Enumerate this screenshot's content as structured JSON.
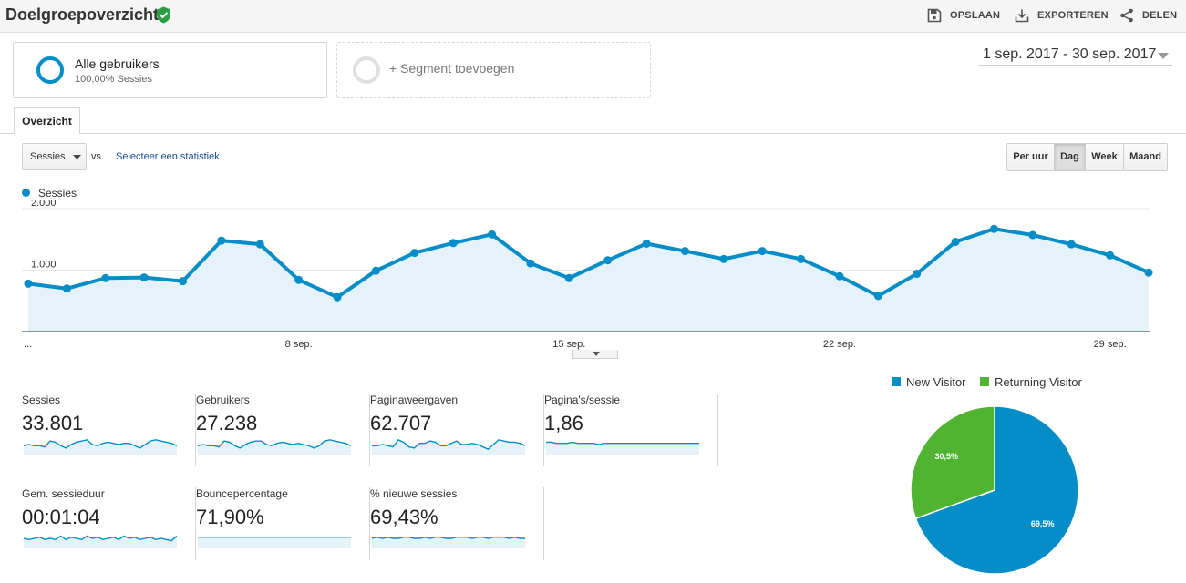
{
  "header": {
    "title": "Doelgroepoverzicht",
    "actions": [
      {
        "label": "OPSLAAN",
        "icon": "save-icon"
      },
      {
        "label": "EXPORTEREN",
        "icon": "download-icon"
      },
      {
        "label": "DELEN",
        "icon": "share-icon"
      }
    ]
  },
  "segments": {
    "active": {
      "name": "Alle gebruikers",
      "detail": "100,00% Sessies"
    },
    "add_label": "+ Segment toevoegen"
  },
  "date_range": "1 sep. 2017 - 30 sep. 2017",
  "tabs": [
    {
      "label": "Overzicht"
    }
  ],
  "controls": {
    "metric": "Sessies",
    "vs_label": "vs.",
    "compare_link": "Selecteer een statistiek",
    "granularity": [
      {
        "label": "Per uur",
        "active": false
      },
      {
        "label": "Dag",
        "active": true
      },
      {
        "label": "Week",
        "active": false
      },
      {
        "label": "Maand",
        "active": false
      }
    ]
  },
  "colors": {
    "primary": "#058dc7",
    "secondary": "#50b432",
    "area_fill": "#e5f2f9",
    "verified": "#2e9e44"
  },
  "chart_data": [
    {
      "type": "line",
      "legend": [
        "Sessies"
      ],
      "y_ticks": [
        "2.000",
        "1.000"
      ],
      "y_tick_values": [
        2000,
        1000
      ],
      "ylim": [
        0,
        2000
      ],
      "x_start_label": "...",
      "x_tick_labels": [
        "8 sep.",
        "15 sep.",
        "22 sep.",
        "29 sep."
      ],
      "x_tick_days": [
        8,
        15,
        22,
        29
      ],
      "series": [
        {
          "name": "Sessies",
          "days": [
            1,
            2,
            3,
            4,
            5,
            6,
            7,
            8,
            9,
            10,
            11,
            12,
            13,
            14,
            15,
            16,
            17,
            18,
            19,
            20,
            21,
            22,
            23,
            24,
            25,
            26,
            27,
            28,
            29,
            30
          ],
          "values": [
            780,
            700,
            870,
            880,
            820,
            1480,
            1420,
            840,
            560,
            990,
            1280,
            1440,
            1580,
            1110,
            870,
            1160,
            1430,
            1310,
            1180,
            1310,
            1180,
            900,
            580,
            940,
            1460,
            1670,
            1570,
            1420,
            1240,
            960
          ]
        }
      ]
    },
    {
      "type": "pie",
      "legend": [
        "New Visitor",
        "Returning Visitor"
      ],
      "labels": [
        "New Visitor",
        "Returning Visitor"
      ],
      "values": [
        69.5,
        30.5
      ],
      "value_labels": [
        "69,5%",
        "30,5%"
      ]
    }
  ],
  "kpis": [
    {
      "label": "Sessies",
      "value": "33.801",
      "spark": [
        6,
        7,
        6,
        6,
        5,
        10,
        9,
        6,
        4,
        7,
        9,
        10,
        11,
        7,
        6,
        8,
        9,
        8,
        7,
        8,
        8,
        6,
        4,
        7,
        10,
        11,
        10,
        9,
        8,
        6
      ]
    },
    {
      "label": "Gebruikers",
      "value": "27.238",
      "spark": [
        6,
        7,
        6,
        6,
        5,
        10,
        9,
        6,
        4,
        7,
        9,
        10,
        10,
        7,
        6,
        8,
        9,
        8,
        7,
        8,
        7,
        6,
        4,
        6,
        10,
        11,
        10,
        9,
        8,
        6
      ]
    },
    {
      "label": "Paginaweergaven",
      "value": "62.707",
      "spark": [
        6,
        6,
        7,
        6,
        5,
        11,
        9,
        5,
        4,
        8,
        8,
        10,
        9,
        6,
        6,
        8,
        10,
        7,
        7,
        8,
        7,
        5,
        3,
        7,
        11,
        10,
        9,
        9,
        8,
        6
      ]
    },
    {
      "label": "Pagina's/sessie",
      "value": "1,86",
      "spark": [
        9,
        9,
        8,
        8,
        8,
        9,
        8,
        8,
        8,
        8,
        7,
        8,
        8,
        8,
        8,
        8,
        8,
        8,
        8,
        8,
        8,
        8,
        8,
        8,
        8,
        8,
        8,
        8,
        8,
        8
      ]
    },
    {
      "label": "Gem. sessieduur",
      "value": "00:01:04",
      "spark": [
        7,
        6,
        7,
        8,
        6,
        7,
        6,
        9,
        6,
        8,
        7,
        6,
        9,
        7,
        8,
        6,
        7,
        8,
        6,
        9,
        7,
        8,
        6,
        7,
        8,
        6,
        7,
        6,
        5,
        9
      ]
    },
    {
      "label": "Bouncepercentage",
      "value": "71,90%",
      "spark": [
        8,
        8,
        8,
        8,
        8,
        8,
        8,
        8,
        8,
        8,
        8,
        8,
        8,
        8,
        8,
        8,
        8,
        8,
        8,
        8,
        8,
        8,
        8,
        8,
        8,
        8,
        8,
        8,
        8,
        8
      ]
    },
    {
      "label": "% nieuwe sessies",
      "value": "69,43%",
      "spark": [
        7,
        8,
        7,
        8,
        7,
        7,
        8,
        8,
        7,
        7,
        8,
        7,
        8,
        8,
        7,
        7,
        8,
        8,
        8,
        7,
        8,
        8,
        7,
        8,
        8,
        8,
        7,
        8,
        7,
        7
      ]
    }
  ]
}
